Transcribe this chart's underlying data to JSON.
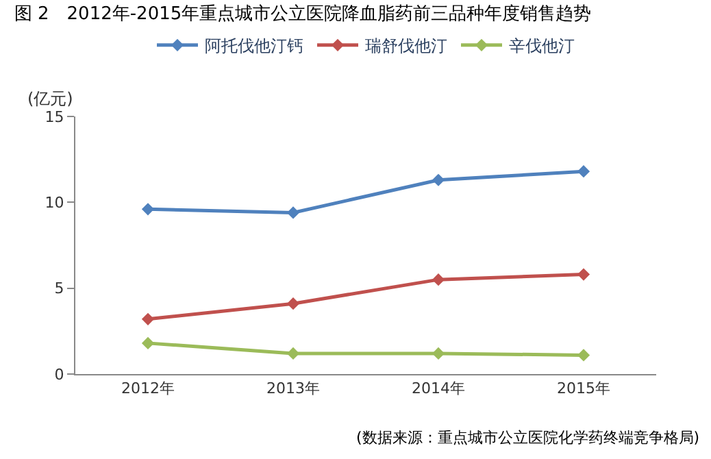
{
  "chart_data": {
    "type": "line",
    "title": "图 2　2012年-2015年重点城市公立医院降血脂药前三品种年度销售趋势",
    "ylabel": "(亿元)",
    "categories": [
      "2012年",
      "2013年",
      "2014年",
      "2015年"
    ],
    "series": [
      {
        "name": "阿托伐他汀钙",
        "color": "#4f81bd",
        "values": [
          9.6,
          9.4,
          11.3,
          11.8
        ]
      },
      {
        "name": "瑞舒伐他汀",
        "color": "#c0504d",
        "values": [
          3.2,
          4.1,
          5.5,
          5.8
        ]
      },
      {
        "name": "辛伐他汀",
        "color": "#9bbb59",
        "values": [
          1.8,
          1.2,
          1.2,
          1.1
        ]
      }
    ],
    "ylim": [
      0,
      15
    ],
    "yticks": [
      0,
      5,
      10,
      15
    ],
    "legend": "top",
    "marker": "diamond",
    "line_style": "solid",
    "annotations": [
      "(数据来源：重点城市公立医院化学药终端竞争格局)"
    ]
  }
}
